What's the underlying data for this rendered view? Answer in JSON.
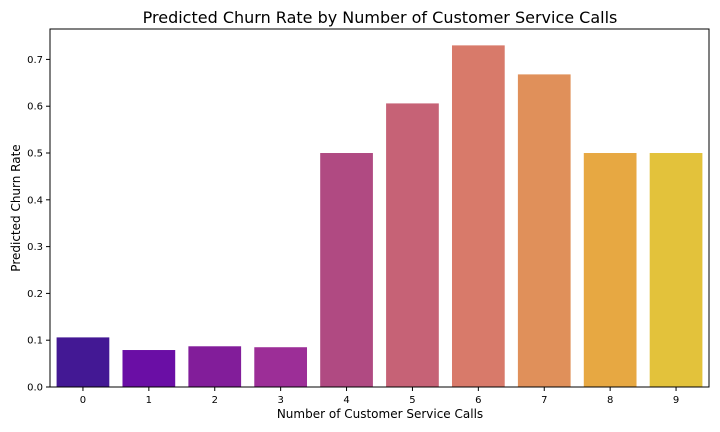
{
  "chart_data": {
    "type": "bar",
    "title": "Predicted Churn Rate by Number of Customer Service Calls",
    "xlabel": "Number of Customer Service Calls",
    "ylabel": "Predicted Churn Rate",
    "categories": [
      "0",
      "1",
      "2",
      "3",
      "4",
      "5",
      "6",
      "7",
      "8",
      "9"
    ],
    "values": [
      0.106,
      0.079,
      0.087,
      0.085,
      0.5,
      0.606,
      0.73,
      0.668,
      0.5,
      0.5
    ],
    "colors": [
      "#431894",
      "#6a0ea5",
      "#821d9a",
      "#9c2e97",
      "#b04a82",
      "#c66276",
      "#d87a6a",
      "#e0905a",
      "#e7a842",
      "#e3c23b"
    ],
    "ylim": [
      0,
      0.765
    ],
    "yticks": [
      "0.0",
      "0.1",
      "0.2",
      "0.3",
      "0.4",
      "0.5",
      "0.6",
      "0.7"
    ],
    "grid": false,
    "legend": "none"
  }
}
